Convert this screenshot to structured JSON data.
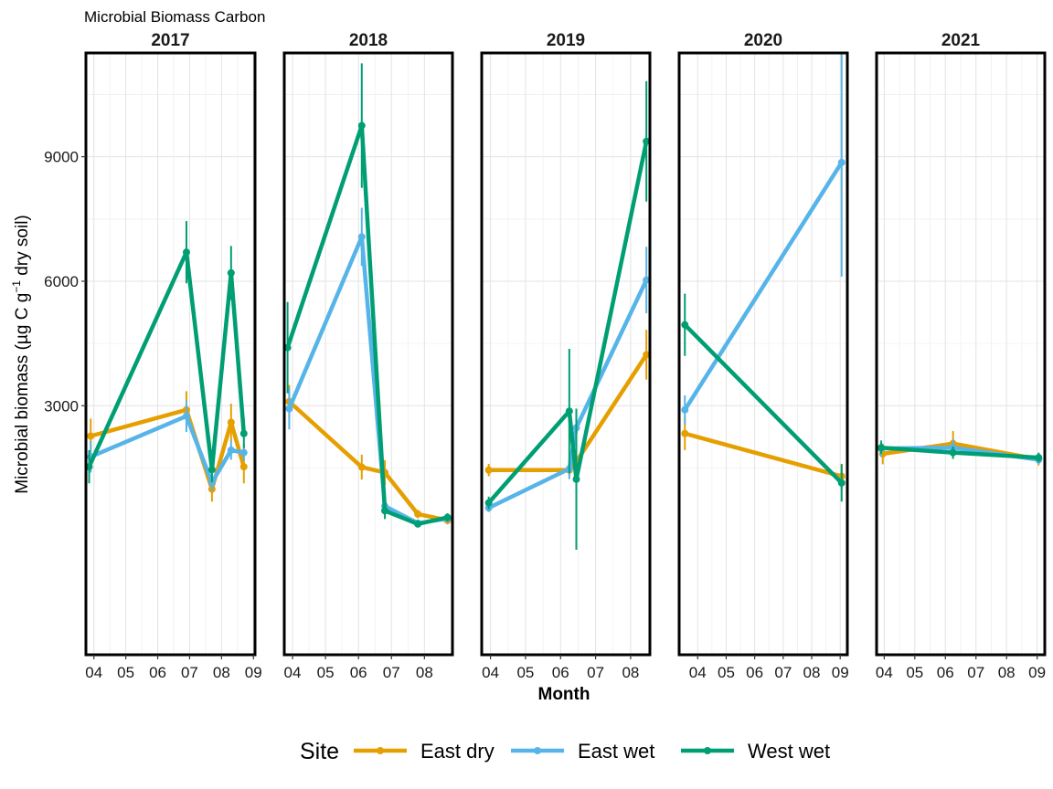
{
  "chart_data": {
    "type": "line",
    "title": "Microbial Biomass Carbon",
    "xlabel": "Month",
    "ylabel": "Microbial biomass (µg C g⁻¹ dry soil)",
    "ylabel_parts": {
      "prefix": "Microbial biomass (µg C g",
      "sup": "−1",
      "suffix": " dry soil)"
    },
    "ylim": [
      -3000,
      11500
    ],
    "yticks": [
      3000,
      6000,
      9000
    ],
    "y_minor_ticks": [
      1500,
      4500,
      7500,
      10500
    ],
    "grid": true,
    "legend": {
      "title": "Site",
      "placement": "bottom"
    },
    "series": [
      {
        "name": "East dry",
        "color": "#E69F00"
      },
      {
        "name": "East wet",
        "color": "#56B4E9"
      },
      {
        "name": "West wet",
        "color": "#009E73"
      }
    ],
    "panels": [
      {
        "year": "2017",
        "xlim": [
          3.75,
          9.05
        ],
        "ticks": [
          4,
          5,
          6,
          7,
          8,
          9
        ],
        "tick_labels": [
          "04",
          "05",
          "06",
          "07",
          "08",
          "09"
        ],
        "data": {
          "East dry": [
            [
              3.9,
              2270,
              420
            ],
            [
              6.9,
              2900,
              450
            ],
            [
              7.7,
              990,
              300
            ],
            [
              8.3,
              2600,
              450
            ],
            [
              8.7,
              1530,
              400
            ]
          ],
          "East wet": [
            [
              3.9,
              1770,
              380
            ],
            [
              6.9,
              2750,
              380
            ],
            [
              7.7,
              1150,
              200
            ],
            [
              8.3,
              1930,
              230
            ],
            [
              8.7,
              1870,
              200
            ]
          ],
          "West wet": [
            [
              3.85,
              1530,
              400
            ],
            [
              6.9,
              6700,
              750
            ],
            [
              7.7,
              1460,
              300
            ],
            [
              8.3,
              6200,
              650
            ],
            [
              8.7,
              2330,
              350
            ]
          ]
        }
      },
      {
        "year": "2018",
        "xlim": [
          3.75,
          8.85
        ],
        "ticks": [
          4,
          5,
          6,
          7,
          8
        ],
        "tick_labels": [
          "04",
          "05",
          "06",
          "07",
          "08"
        ],
        "data": {
          "East dry": [
            [
              3.9,
              3100,
              400
            ],
            [
              6.1,
              1520,
              300
            ],
            [
              6.8,
              1390,
              300
            ],
            [
              7.8,
              390,
              100
            ],
            [
              8.7,
              240,
              100
            ]
          ],
          "East wet": [
            [
              3.9,
              2930,
              500
            ],
            [
              6.1,
              7070,
              700
            ],
            [
              6.8,
              580,
              200
            ],
            [
              7.8,
              170,
              80
            ],
            [
              8.7,
              280,
              100
            ]
          ],
          "West wet": [
            [
              3.85,
              4400,
              1100
            ],
            [
              6.1,
              9750,
              1500
            ],
            [
              6.8,
              470,
              200
            ],
            [
              7.8,
              150,
              80
            ],
            [
              8.7,
              310,
              100
            ]
          ]
        }
      },
      {
        "year": "2019",
        "xlim": [
          3.75,
          8.55
        ],
        "ticks": [
          4,
          5,
          6,
          7,
          8
        ],
        "tick_labels": [
          "04",
          "05",
          "06",
          "07",
          "08"
        ],
        "data": {
          "East dry": [
            [
              3.95,
              1450,
              150
            ],
            [
              6.25,
              1450,
              150
            ],
            [
              6.45,
              1650,
              250
            ],
            [
              8.45,
              4230,
              600
            ]
          ],
          "East wet": [
            [
              3.95,
              540,
              100
            ],
            [
              6.25,
              1480,
              250
            ],
            [
              6.45,
              2470,
              400
            ],
            [
              8.45,
              6030,
              800
            ]
          ],
          "West wet": [
            [
              3.95,
              660,
              150
            ],
            [
              6.25,
              2870,
              1500
            ],
            [
              6.45,
              1230,
              1700
            ],
            [
              8.45,
              9370,
              1450
            ]
          ]
        }
      },
      {
        "year": "2020",
        "xlim": [
          3.35,
          9.25
        ],
        "ticks": [
          4,
          5,
          6,
          7,
          8,
          9
        ],
        "tick_labels": [
          "04",
          "05",
          "06",
          "07",
          "08",
          "09"
        ],
        "data": {
          "East dry": [
            [
              3.55,
              2330,
              400
            ],
            [
              9.05,
              1300,
              300
            ]
          ],
          "East wet": [
            [
              3.55,
              2900,
              350
            ],
            [
              9.05,
              8860,
              2750
            ]
          ],
          "West wet": [
            [
              3.55,
              4950,
              750
            ],
            [
              9.05,
              1140,
              450
            ]
          ]
        }
      },
      {
        "year": "2021",
        "xlim": [
          3.75,
          9.25
        ],
        "ticks": [
          4,
          5,
          6,
          7,
          8,
          9
        ],
        "tick_labels": [
          "04",
          "05",
          "06",
          "07",
          "08",
          "09"
        ],
        "data": {
          "East dry": [
            [
              3.95,
              1840,
              250
            ],
            [
              6.25,
              2090,
              300
            ],
            [
              9.05,
              1710,
              150
            ]
          ],
          "East wet": [
            [
              3.9,
              1970,
              200
            ],
            [
              6.25,
              1990,
              200
            ],
            [
              9.05,
              1700,
              100
            ]
          ],
          "West wet": [
            [
              3.9,
              1990,
              150
            ],
            [
              6.25,
              1870,
              150
            ],
            [
              9.05,
              1750,
              120
            ]
          ]
        }
      }
    ]
  }
}
